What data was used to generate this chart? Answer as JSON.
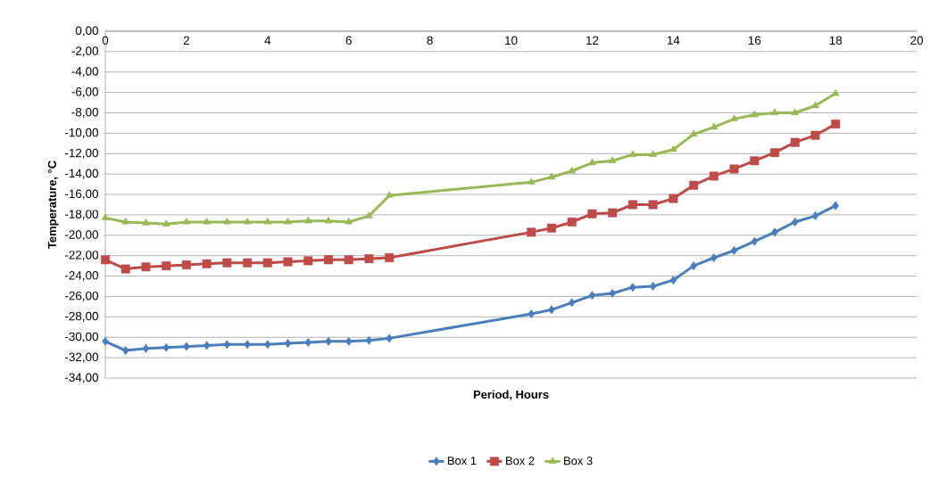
{
  "chart_data": {
    "type": "line",
    "xlabel": "Period, Hours",
    "ylabel": "Temperature, °C",
    "series": [
      {
        "name": "Box 1",
        "color": "#4a7ebb",
        "marker": "diamond",
        "x": [
          0,
          0.5,
          1,
          1.5,
          2,
          2.5,
          3,
          3.5,
          4,
          4.5,
          5,
          5.5,
          6,
          6.5,
          7,
          10.5,
          11,
          11.5,
          12,
          12.5,
          13,
          13.5,
          14,
          14.5,
          15,
          15.5,
          16,
          16.5,
          17,
          17.5,
          18
        ],
        "values": [
          -30.4,
          -31.3,
          -31.1,
          -31.0,
          -30.9,
          -30.8,
          -30.7,
          -30.7,
          -30.7,
          -30.6,
          -30.5,
          -30.4,
          -30.4,
          -30.3,
          -30.1,
          -27.7,
          -27.3,
          -26.6,
          -25.9,
          -25.7,
          -25.1,
          -25.0,
          -24.4,
          -23.0,
          -22.2,
          -21.5,
          -20.6,
          -19.7,
          -18.7,
          -18.1,
          -17.1
        ]
      },
      {
        "name": "Box 2",
        "color": "#be4b48",
        "marker": "square",
        "x": [
          0,
          0.5,
          1,
          1.5,
          2,
          2.5,
          3,
          3.5,
          4,
          4.5,
          5,
          5.5,
          6,
          6.5,
          7,
          10.5,
          11,
          11.5,
          12,
          12.5,
          13,
          13.5,
          14,
          14.5,
          15,
          15.5,
          16,
          16.5,
          17,
          17.5,
          18
        ],
        "values": [
          -22.4,
          -23.3,
          -23.1,
          -23.0,
          -22.9,
          -22.8,
          -22.7,
          -22.7,
          -22.7,
          -22.6,
          -22.5,
          -22.4,
          -22.4,
          -22.3,
          -22.2,
          -19.7,
          -19.3,
          -18.7,
          -17.9,
          -17.8,
          -17.0,
          -17.0,
          -16.4,
          -15.1,
          -14.2,
          -13.5,
          -12.7,
          -11.9,
          -10.9,
          -10.2,
          -9.1
        ]
      },
      {
        "name": "Box 3",
        "color": "#98b954",
        "marker": "triangle",
        "x": [
          0,
          0.5,
          1,
          1.5,
          2,
          2.5,
          3,
          3.5,
          4,
          4.5,
          5,
          5.5,
          6,
          6.5,
          7,
          10.5,
          11,
          11.5,
          12,
          12.5,
          13,
          13.5,
          14,
          14.5,
          15,
          15.5,
          16,
          16.5,
          17,
          17.5,
          18
        ],
        "values": [
          -18.3,
          -18.7,
          -18.8,
          -18.9,
          -18.7,
          -18.7,
          -18.7,
          -18.7,
          -18.7,
          -18.7,
          -18.6,
          -18.6,
          -18.7,
          -18.1,
          -16.1,
          -14.8,
          -14.3,
          -13.7,
          -12.9,
          -12.7,
          -12.1,
          -12.1,
          -11.6,
          -10.1,
          -9.4,
          -8.6,
          -8.2,
          -8.0,
          -8.0,
          -7.3,
          -6.1
        ]
      }
    ],
    "xlim": [
      0,
      20
    ],
    "xticks": [
      0,
      2,
      4,
      6,
      8,
      10,
      12,
      14,
      16,
      18,
      20
    ],
    "ylim": [
      -34,
      0
    ],
    "yticks": [
      {
        "value": 0,
        "label": "0,00"
      },
      {
        "value": -2,
        "label": "-2,00"
      },
      {
        "value": -4,
        "label": "-4,00"
      },
      {
        "value": -6,
        "label": "-6,00"
      },
      {
        "value": -8,
        "label": "-8,00"
      },
      {
        "value": -10,
        "label": "-10,00"
      },
      {
        "value": -12,
        "label": "-12,00"
      },
      {
        "value": -14,
        "label": "-14,00"
      },
      {
        "value": -16,
        "label": "-16,00"
      },
      {
        "value": -18,
        "label": "-18,00"
      },
      {
        "value": -20,
        "label": "-20,00"
      },
      {
        "value": -22,
        "label": "-22,00"
      },
      {
        "value": -24,
        "label": "-24,00"
      },
      {
        "value": -26,
        "label": "-26,00"
      },
      {
        "value": -28,
        "label": "-28,00"
      },
      {
        "value": -30,
        "label": "-30,00"
      },
      {
        "value": -32,
        "label": "-32,00"
      },
      {
        "value": -34,
        "label": "-34,00"
      }
    ],
    "grid": "y",
    "legend": "bottom",
    "line_style": "solid"
  }
}
